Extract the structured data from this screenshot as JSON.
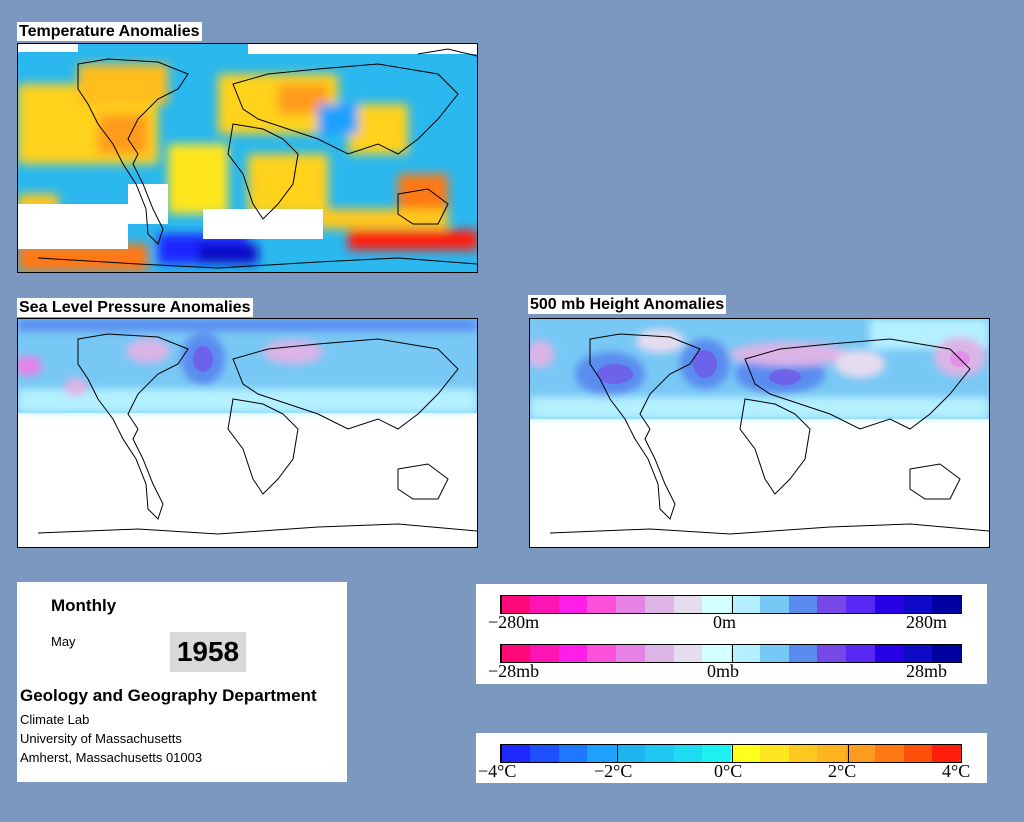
{
  "maps": {
    "temperature": {
      "title": "Temperature Anomalies"
    },
    "slp": {
      "title": "Sea Level Pressure Anomalies"
    },
    "height500": {
      "title": "500 mb Height Anomalies"
    }
  },
  "info": {
    "period": "Monthly",
    "month": "May",
    "year": "1958",
    "department": "Geology and Geography Department",
    "lab": "Climate Lab",
    "university": "University of Massachusetts",
    "address": "Amherst, Massachusetts 01003"
  },
  "legend_height": {
    "colors": [
      "#ff0a78",
      "#ff14b4",
      "#ff1ee6",
      "#ff50dc",
      "#e682e6",
      "#dcb4e6",
      "#e6dcf0",
      "#d2ffff",
      "#b4f0ff",
      "#78c8f5",
      "#5a8cf0",
      "#7848e6",
      "#5a28f5",
      "#2800e6",
      "#0f0ac8",
      "#0000a0"
    ],
    "min_label": "−280m",
    "mid_label": "0m",
    "max_label": "280m"
  },
  "legend_pressure": {
    "colors": [
      "#ff0a78",
      "#ff14b4",
      "#ff1ee6",
      "#ff50dc",
      "#e682e6",
      "#dcb4e6",
      "#e6dcf0",
      "#d2ffff",
      "#b4f0ff",
      "#78c8f5",
      "#5a8cf0",
      "#7848e6",
      "#5a28f5",
      "#2800e6",
      "#0f0ac8",
      "#0000a0"
    ],
    "min_label": "−28mb",
    "mid_label": "0mb",
    "max_label": "28mb"
  },
  "legend_temperature": {
    "colors": [
      "#1e28ff",
      "#1e50ff",
      "#1e78ff",
      "#1ea0ff",
      "#1eb4f0",
      "#1ec8f0",
      "#1edcf0",
      "#1ef0f0",
      "#ffff1e",
      "#ffe61e",
      "#ffc81e",
      "#ffb41e",
      "#ff9b1e",
      "#ff7814",
      "#ff500a",
      "#ff1e0a"
    ],
    "labels": [
      "−4°C",
      "−2°C",
      "0°C",
      "2°C",
      "4°C"
    ]
  }
}
